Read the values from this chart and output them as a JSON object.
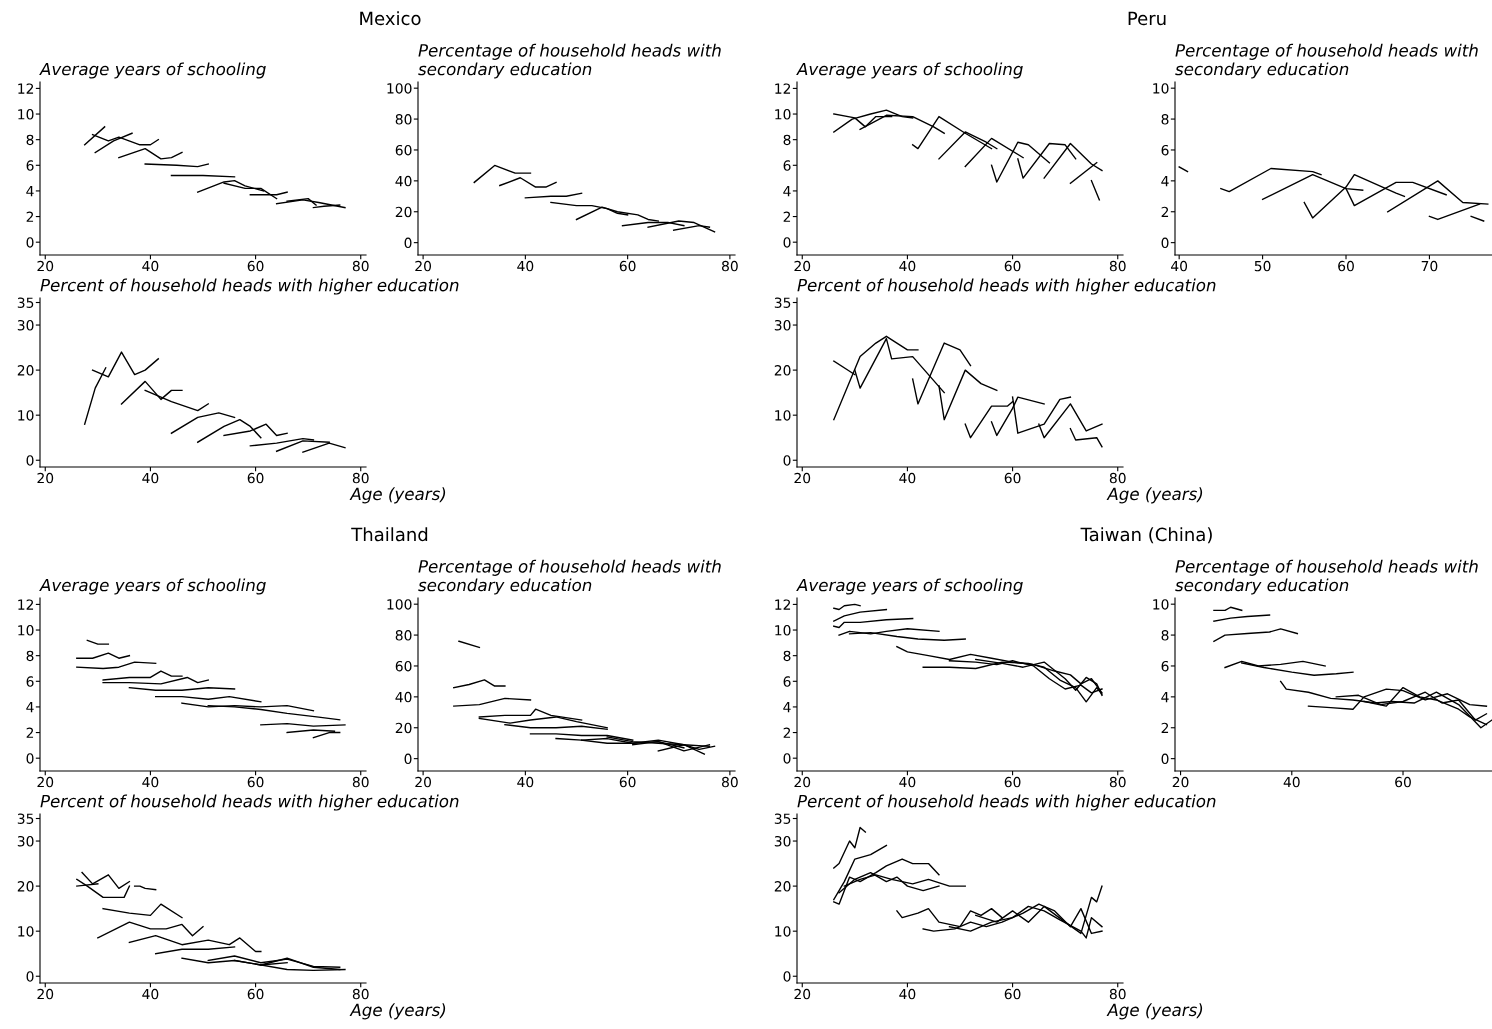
{
  "chart_data": [
    {
      "type": "line",
      "title": "Average years of schooling",
      "annotations": [
        "Mexico"
      ],
      "xlim": [
        19,
        81
      ],
      "xticks": [
        20,
        40,
        60,
        80
      ],
      "ylim": [
        -1,
        12.5
      ],
      "yticks": [
        0,
        2,
        4,
        6,
        8,
        10,
        12
      ],
      "series": [
        {
          "color": "#000000",
          "x": [
            27.5,
            31.3
          ],
          "values": [
            7.6,
            9.0
          ]
        },
        {
          "color": "#000000",
          "x": [
            29,
            32,
            34,
            38,
            40,
            41.5
          ],
          "values": [
            8.4,
            7.9,
            8.2,
            7.6,
            7.6,
            8.0
          ]
        },
        {
          "color": "#000000",
          "x": [
            29.5,
            33,
            36.5
          ],
          "values": [
            7.0,
            7.9,
            8.5
          ]
        },
        {
          "color": "#000000",
          "x": [
            34,
            39,
            42,
            44,
            46
          ],
          "values": [
            6.6,
            7.3,
            6.5,
            6.6,
            7.0
          ]
        },
        {
          "color": "#000000",
          "x": [
            39,
            45,
            49,
            51
          ],
          "values": [
            6.1,
            6.0,
            5.9,
            6.1
          ]
        },
        {
          "color": "#000000",
          "x": [
            44,
            50,
            56
          ],
          "values": [
            5.2,
            5.2,
            5.1
          ]
        },
        {
          "color": "#000000",
          "x": [
            49,
            54,
            56,
            58,
            61.5
          ],
          "values": [
            3.9,
            4.7,
            4.8,
            4.4,
            4.0
          ]
        },
        {
          "color": "#000000",
          "x": [
            54,
            58,
            61,
            64
          ],
          "values": [
            4.6,
            4.2,
            4.2,
            3.4
          ]
        },
        {
          "color": "#000000",
          "x": [
            59,
            64,
            66
          ],
          "values": [
            3.7,
            3.7,
            3.9
          ]
        },
        {
          "color": "#000000",
          "x": [
            64,
            69,
            72,
            77
          ],
          "values": [
            3.0,
            3.3,
            3.1,
            2.7
          ]
        },
        {
          "color": "#000000",
          "x": [
            66,
            70,
            71.5
          ],
          "values": [
            3.2,
            3.4,
            2.9
          ]
        },
        {
          "color": "#000000",
          "x": [
            71,
            73,
            76
          ],
          "values": [
            2.7,
            2.8,
            2.9
          ]
        }
      ]
    },
    {
      "type": "line",
      "title": "Percentage of household heads with\nsecondary education",
      "xlim": [
        19,
        81
      ],
      "xticks": [
        20,
        40,
        60,
        80
      ],
      "ylim": [
        -8,
        104
      ],
      "yticks": [
        0,
        20,
        40,
        60,
        80,
        100
      ],
      "series": [
        {
          "color": "#000000",
          "x": [
            30,
            34,
            38,
            41
          ],
          "values": [
            39,
            50,
            45,
            45
          ]
        },
        {
          "color": "#000000",
          "x": [
            35,
            39,
            42,
            44,
            46
          ],
          "values": [
            37,
            42,
            36,
            36,
            39
          ]
        },
        {
          "color": "#000000",
          "x": [
            40,
            45,
            48,
            51
          ],
          "values": [
            29,
            30,
            30,
            32
          ]
        },
        {
          "color": "#000000",
          "x": [
            45,
            50,
            53,
            56,
            58,
            60
          ],
          "values": [
            26,
            24,
            24,
            22,
            19,
            18
          ]
        },
        {
          "color": "#000000",
          "x": [
            50,
            55,
            58,
            62,
            64,
            66
          ],
          "values": [
            15,
            23,
            20,
            18,
            15,
            14
          ]
        },
        {
          "color": "#000000",
          "x": [
            59,
            64,
            68,
            71
          ],
          "values": [
            11,
            13,
            13,
            11
          ]
        },
        {
          "color": "#000000",
          "x": [
            64,
            70,
            73,
            77
          ],
          "values": [
            10,
            14,
            13,
            7
          ]
        },
        {
          "color": "#000000",
          "x": [
            69,
            74,
            76
          ],
          "values": [
            8,
            11,
            10
          ]
        }
      ]
    },
    {
      "type": "line",
      "title": "Percent of household heads with higher education",
      "xlabel": "Age (years)",
      "xlim": [
        19,
        81
      ],
      "xticks": [
        20,
        40,
        60,
        80
      ],
      "ylim": [
        -1.5,
        36
      ],
      "yticks": [
        0,
        10,
        20,
        30,
        35
      ],
      "series": [
        {
          "color": "#000000",
          "x": [
            27.5,
            29.5,
            31.5
          ],
          "values": [
            8,
            16,
            20.5
          ]
        },
        {
          "color": "#000000",
          "x": [
            29,
            32,
            34.5,
            37,
            39,
            41.5
          ],
          "values": [
            20,
            18.5,
            24,
            19,
            20,
            22.5
          ]
        },
        {
          "color": "#000000",
          "x": [
            34.5,
            39,
            42,
            44,
            46
          ],
          "values": [
            12.5,
            17.5,
            13.5,
            15.5,
            15.5
          ]
        },
        {
          "color": "#000000",
          "x": [
            39,
            44,
            49,
            51
          ],
          "values": [
            15.5,
            13,
            11,
            12.5
          ]
        },
        {
          "color": "#000000",
          "x": [
            44,
            49,
            53,
            56
          ],
          "values": [
            6,
            9.5,
            10.5,
            9.5
          ]
        },
        {
          "color": "#000000",
          "x": [
            49,
            54,
            57,
            59,
            61
          ],
          "values": [
            4,
            7.5,
            9,
            7.5,
            5
          ]
        },
        {
          "color": "#000000",
          "x": [
            54,
            59,
            62,
            64,
            66
          ],
          "values": [
            5.5,
            6.5,
            8,
            5.5,
            6
          ]
        },
        {
          "color": "#000000",
          "x": [
            59,
            64,
            69,
            71
          ],
          "values": [
            3.2,
            3.8,
            4.8,
            4.5
          ]
        },
        {
          "color": "#000000",
          "x": [
            64,
            69,
            74
          ],
          "values": [
            2,
            4.3,
            4
          ]
        },
        {
          "color": "#000000",
          "x": [
            69,
            74,
            77
          ],
          "values": [
            1.8,
            3.8,
            2.8
          ]
        }
      ]
    },
    {
      "type": "line",
      "title": "Average years of schooling",
      "annotations": [
        "Peru"
      ],
      "xlim": [
        19,
        81
      ],
      "xticks": [
        20,
        40,
        60,
        80
      ],
      "ylim": [
        -1,
        12.5
      ],
      "yticks": [
        0,
        2,
        4,
        6,
        8,
        10,
        12
      ],
      "series": [
        {
          "color": "#000000",
          "x": [
            26,
            30,
            32,
            34,
            37
          ],
          "values": [
            10.0,
            9.7,
            9.0,
            9.8,
            9.8
          ]
        },
        {
          "color": "#000000",
          "x": [
            26,
            29.5,
            33,
            36,
            39,
            41
          ],
          "values": [
            8.6,
            9.6,
            10.0,
            10.3,
            9.8,
            9.7
          ]
        },
        {
          "color": "#000000",
          "x": [
            31,
            36,
            41,
            45,
            47
          ],
          "values": [
            8.8,
            9.9,
            9.8,
            9.0,
            8.5
          ]
        },
        {
          "color": "#000000",
          "x": [
            41,
            42,
            46,
            51,
            56
          ],
          "values": [
            7.6,
            7.3,
            9.8,
            8.5,
            7.3
          ]
        },
        {
          "color": "#000000",
          "x": [
            46,
            51,
            55,
            57
          ],
          "values": [
            6.5,
            8.6,
            7.8,
            7.3
          ]
        },
        {
          "color": "#000000",
          "x": [
            51,
            56,
            62
          ],
          "values": [
            5.9,
            8.1,
            6.6
          ]
        },
        {
          "color": "#000000",
          "x": [
            56,
            57,
            61,
            63,
            67
          ],
          "values": [
            6.0,
            4.7,
            7.8,
            7.6,
            6.2
          ]
        },
        {
          "color": "#000000",
          "x": [
            61,
            62,
            67,
            70,
            72
          ],
          "values": [
            6.5,
            5.0,
            7.7,
            7.6,
            6.5
          ]
        },
        {
          "color": "#000000",
          "x": [
            66,
            71,
            75,
            77
          ],
          "values": [
            5.0,
            7.7,
            6.1,
            5.6
          ]
        },
        {
          "color": "#000000",
          "x": [
            71,
            76
          ],
          "values": [
            4.6,
            6.2
          ]
        },
        {
          "color": "#000000",
          "x": [
            75,
            76.5
          ],
          "values": [
            4.8,
            3.3
          ]
        }
      ]
    },
    {
      "type": "line",
      "title": "Percentage of household heads with\nsecondary education",
      "xlim": [
        39.5,
        77.5
      ],
      "xticks": [
        40,
        50,
        60,
        70
      ],
      "ylim": [
        -0.8,
        10.4
      ],
      "yticks": [
        0,
        2,
        4,
        6,
        8,
        10
      ],
      "series": [
        {
          "color": "#000000",
          "x": [
            40,
            41
          ],
          "values": [
            4.9,
            4.6
          ]
        },
        {
          "color": "#000000",
          "x": [
            45,
            46,
            51,
            56,
            57
          ],
          "values": [
            3.5,
            3.3,
            4.8,
            4.6,
            4.4
          ]
        },
        {
          "color": "#000000",
          "x": [
            50,
            56,
            60,
            62
          ],
          "values": [
            2.8,
            4.4,
            3.5,
            3.4
          ]
        },
        {
          "color": "#000000",
          "x": [
            55,
            56,
            60,
            61,
            66,
            67
          ],
          "values": [
            2.6,
            1.6,
            3.6,
            4.4,
            3.2,
            3.0
          ]
        },
        {
          "color": "#000000",
          "x": [
            60,
            61,
            66,
            68,
            72
          ],
          "values": [
            3.5,
            2.4,
            3.9,
            3.9,
            3.1
          ]
        },
        {
          "color": "#000000",
          "x": [
            65,
            71,
            74,
            77
          ],
          "values": [
            2.0,
            4.0,
            2.6,
            2.5
          ]
        },
        {
          "color": "#000000",
          "x": [
            70,
            71,
            76
          ],
          "values": [
            1.7,
            1.5,
            2.5
          ]
        },
        {
          "color": "#000000",
          "x": [
            75,
            76.5
          ],
          "values": [
            1.7,
            1.4
          ]
        }
      ]
    },
    {
      "type": "line",
      "title": "Percent of household heads with higher education",
      "xlabel": "Age (years)",
      "xlim": [
        19,
        81
      ],
      "xticks": [
        20,
        40,
        60,
        80
      ],
      "ylim": [
        -1.5,
        36
      ],
      "yticks": [
        0,
        10,
        20,
        30,
        35
      ],
      "series": [
        {
          "color": "#000000",
          "x": [
            26,
            30
          ],
          "values": [
            22,
            19
          ]
        },
        {
          "color": "#000000",
          "x": [
            26,
            31,
            34,
            36,
            40,
            42
          ],
          "values": [
            9,
            23,
            26,
            27.5,
            24.5,
            24.5
          ]
        },
        {
          "color": "#000000",
          "x": [
            30,
            31,
            36,
            37,
            41,
            47
          ],
          "values": [
            20,
            16,
            27,
            22.5,
            23,
            15
          ]
        },
        {
          "color": "#000000",
          "x": [
            41,
            42,
            47,
            50,
            52
          ],
          "values": [
            18,
            12.5,
            26,
            24.5,
            21
          ]
        },
        {
          "color": "#000000",
          "x": [
            46,
            47,
            51,
            54,
            57
          ],
          "values": [
            16.5,
            9,
            20,
            17,
            15.5
          ]
        },
        {
          "color": "#000000",
          "x": [
            51,
            52,
            56,
            59,
            60
          ],
          "values": [
            8,
            5,
            12,
            12,
            13
          ]
        },
        {
          "color": "#000000",
          "x": [
            56,
            57,
            60,
            61,
            66
          ],
          "values": [
            8.5,
            5.5,
            11.5,
            14,
            12.5
          ]
        },
        {
          "color": "#000000",
          "x": [
            60,
            61,
            66,
            69,
            71
          ],
          "values": [
            14,
            6,
            8,
            13.5,
            14
          ]
        },
        {
          "color": "#000000",
          "x": [
            65,
            66,
            71,
            74,
            77
          ],
          "values": [
            8,
            5,
            12.5,
            6.5,
            8
          ]
        },
        {
          "color": "#000000",
          "x": [
            71,
            72,
            76,
            77
          ],
          "values": [
            7,
            4.5,
            5,
            3
          ]
        }
      ]
    },
    {
      "type": "line",
      "title": "Average years of schooling",
      "annotations": [
        "Thailand"
      ],
      "xlim": [
        19,
        81
      ],
      "xticks": [
        20,
        40,
        60,
        80
      ],
      "ylim": [
        -1,
        12.5
      ],
      "yticks": [
        0,
        2,
        4,
        6,
        8,
        10,
        12
      ],
      "series": [
        {
          "color": "#000000",
          "x": [
            28,
            30,
            32
          ],
          "values": [
            9.2,
            8.9,
            8.9
          ]
        },
        {
          "color": "#000000",
          "x": [
            26,
            29,
            32,
            34,
            36
          ],
          "values": [
            7.8,
            7.8,
            8.2,
            7.8,
            8.0
          ]
        },
        {
          "color": "#000000",
          "x": [
            26,
            31,
            34,
            37,
            41
          ],
          "values": [
            7.1,
            7.0,
            7.1,
            7.5,
            7.4
          ]
        },
        {
          "color": "#000000",
          "x": [
            31,
            36,
            40,
            42,
            44,
            46
          ],
          "values": [
            6.1,
            6.3,
            6.3,
            6.8,
            6.4,
            6.4
          ]
        },
        {
          "color": "#000000",
          "x": [
            31,
            36,
            42,
            47,
            49,
            51
          ],
          "values": [
            5.9,
            5.9,
            5.8,
            6.3,
            5.9,
            6.1
          ]
        },
        {
          "color": "#000000",
          "x": [
            36,
            41,
            46,
            51,
            56
          ],
          "values": [
            5.5,
            5.3,
            5.3,
            5.5,
            5.4
          ]
        },
        {
          "color": "#000000",
          "x": [
            41,
            46,
            51,
            55,
            61
          ],
          "values": [
            4.8,
            4.8,
            4.6,
            4.8,
            4.4
          ]
        },
        {
          "color": "#000000",
          "x": [
            46,
            51,
            56,
            61,
            66,
            71
          ],
          "values": [
            4.3,
            4.0,
            4.1,
            4.0,
            4.1,
            3.7
          ]
        },
        {
          "color": "#000000",
          "x": [
            51,
            56,
            61,
            66,
            72,
            76
          ],
          "values": [
            4.1,
            4.0,
            3.8,
            3.5,
            3.2,
            3.0
          ]
        },
        {
          "color": "#000000",
          "x": [
            61,
            66,
            71,
            77
          ],
          "values": [
            2.6,
            2.7,
            2.5,
            2.6
          ]
        },
        {
          "color": "#000000",
          "x": [
            66,
            71,
            75
          ],
          "values": [
            2.0,
            2.2,
            2.1
          ]
        },
        {
          "color": "#000000",
          "x": [
            71,
            74,
            76
          ],
          "values": [
            1.6,
            2.0,
            2.0
          ]
        }
      ]
    },
    {
      "type": "line",
      "title": "Percentage of household heads with\nsecondary education",
      "xlim": [
        19,
        81
      ],
      "xticks": [
        20,
        40,
        60,
        80
      ],
      "ylim": [
        -8,
        104
      ],
      "yticks": [
        0,
        20,
        40,
        60,
        80,
        100
      ],
      "series": [
        {
          "color": "#000000",
          "x": [
            27,
            31
          ],
          "values": [
            76,
            72
          ]
        },
        {
          "color": "#000000",
          "x": [
            26,
            29,
            32,
            34,
            36
          ],
          "values": [
            46,
            48,
            51,
            47,
            47
          ]
        },
        {
          "color": "#000000",
          "x": [
            26,
            31,
            36,
            41
          ],
          "values": [
            34,
            35,
            39,
            38
          ]
        },
        {
          "color": "#000000",
          "x": [
            31,
            36,
            41,
            42,
            45,
            51
          ],
          "values": [
            27,
            28,
            28,
            32,
            28,
            25
          ]
        },
        {
          "color": "#000000",
          "x": [
            31,
            37,
            41,
            46,
            50,
            56
          ],
          "values": [
            26,
            23,
            25,
            27,
            24,
            20
          ]
        },
        {
          "color": "#000000",
          "x": [
            36,
            41,
            46,
            51,
            56
          ],
          "values": [
            22,
            20,
            20,
            21,
            19
          ]
        },
        {
          "color": "#000000",
          "x": [
            41,
            46,
            51,
            56,
            61
          ],
          "values": [
            16,
            16,
            15,
            15,
            12
          ]
        },
        {
          "color": "#000000",
          "x": [
            46,
            51,
            56,
            61,
            66,
            71
          ],
          "values": [
            13,
            12,
            13,
            10,
            11,
            7
          ]
        },
        {
          "color": "#000000",
          "x": [
            51,
            56,
            61,
            66,
            71,
            76
          ],
          "values": [
            12,
            10,
            10,
            12,
            9,
            8
          ]
        },
        {
          "color": "#000000",
          "x": [
            56,
            61,
            66,
            71,
            75
          ],
          "values": [
            14,
            11,
            10,
            9,
            3
          ]
        },
        {
          "color": "#000000",
          "x": [
            61,
            66,
            71,
            76
          ],
          "values": [
            9,
            11,
            5,
            9
          ]
        },
        {
          "color": "#000000",
          "x": [
            66,
            71,
            74,
            77
          ],
          "values": [
            5,
            9,
            6,
            8
          ]
        }
      ]
    },
    {
      "type": "line",
      "title": "Percent of household heads with higher education",
      "xlabel": "Age (years)",
      "xlim": [
        19,
        81
      ],
      "xticks": [
        20,
        40,
        60,
        80
      ],
      "ylim": [
        -1.5,
        36
      ],
      "yticks": [
        0,
        10,
        20,
        30,
        35
      ],
      "series": [
        {
          "color": "#000000",
          "x": [
            26,
            28,
            31,
            35,
            36
          ],
          "values": [
            21.5,
            20,
            17.5,
            17.5,
            20
          ]
        },
        {
          "color": "#000000",
          "x": [
            27,
            29,
            32,
            34,
            36
          ],
          "values": [
            23,
            20.5,
            22.5,
            19.5,
            21
          ]
        },
        {
          "color": "#000000",
          "x": [
            26,
            30
          ],
          "values": [
            20,
            20.5
          ]
        },
        {
          "color": "#000000",
          "x": [
            37,
            38,
            39,
            41
          ],
          "values": [
            20,
            20,
            19.5,
            19.2
          ]
        },
        {
          "color": "#000000",
          "x": [
            31,
            36,
            40,
            42,
            46
          ],
          "values": [
            15,
            14,
            13.5,
            16,
            13
          ]
        },
        {
          "color": "#000000",
          "x": [
            30,
            36,
            40,
            43,
            46,
            48,
            50
          ],
          "values": [
            8.5,
            12,
            10.5,
            10.5,
            11.5,
            9,
            11
          ]
        },
        {
          "color": "#000000",
          "x": [
            36,
            41,
            46,
            51,
            55,
            57,
            60,
            61
          ],
          "values": [
            7.5,
            9,
            7,
            8,
            7,
            8.5,
            5.5,
            5.5
          ]
        },
        {
          "color": "#000000",
          "x": [
            41,
            46,
            51,
            56
          ],
          "values": [
            5,
            6,
            6,
            6.5
          ]
        },
        {
          "color": "#000000",
          "x": [
            46,
            51,
            56,
            61,
            66
          ],
          "values": [
            4,
            3,
            3.5,
            2.5,
            3
          ]
        },
        {
          "color": "#000000",
          "x": [
            51,
            56,
            61,
            66,
            71,
            76
          ],
          "values": [
            3.5,
            4.5,
            3,
            3.8,
            2.2,
            2
          ]
        },
        {
          "color": "#000000",
          "x": [
            56,
            61,
            66,
            71,
            76
          ],
          "values": [
            3.5,
            2.5,
            4,
            2,
            1.5
          ]
        },
        {
          "color": "#000000",
          "x": [
            61,
            66,
            71,
            77
          ],
          "values": [
            2.5,
            1.5,
            1.3,
            1.5
          ]
        }
      ]
    },
    {
      "type": "line",
      "title": "Average years of schooling",
      "annotations": [
        "Taiwan (China)"
      ],
      "xlim": [
        19,
        81
      ],
      "xticks": [
        20,
        40,
        60,
        80
      ],
      "ylim": [
        -1,
        12.5
      ],
      "yticks": [
        0,
        2,
        4,
        6,
        8,
        10,
        12
      ],
      "series": [
        {
          "color": "#000000",
          "x": [
            26,
            27,
            28,
            30,
            31
          ],
          "values": [
            11.7,
            11.6,
            11.9,
            12.0,
            11.9
          ]
        },
        {
          "color": "#000000",
          "x": [
            26,
            28,
            31,
            36
          ],
          "values": [
            10.7,
            11.1,
            11.4,
            11.6
          ]
        },
        {
          "color": "#000000",
          "x": [
            26,
            27,
            28,
            31,
            36,
            41
          ],
          "values": [
            10.3,
            10.2,
            10.6,
            10.6,
            10.8,
            10.9
          ]
        },
        {
          "color": "#000000",
          "x": [
            27,
            29,
            33,
            36,
            40,
            46
          ],
          "values": [
            9.6,
            9.9,
            9.7,
            9.9,
            10.1,
            9.9
          ]
        },
        {
          "color": "#000000",
          "x": [
            29,
            33,
            38,
            42,
            47,
            51
          ],
          "values": [
            9.7,
            9.8,
            9.5,
            9.3,
            9.2,
            9.3
          ]
        },
        {
          "color": "#000000",
          "x": [
            38,
            40,
            44,
            48,
            52,
            56,
            60,
            64,
            68,
            71,
            73,
            75,
            77
          ],
          "values": [
            8.7,
            8.3,
            8.0,
            7.7,
            8.1,
            7.8,
            7.5,
            7.3,
            6.8,
            6.5,
            5.8,
            6.2,
            5.1
          ]
        },
        {
          "color": "#000000",
          "x": [
            43,
            48,
            53,
            58,
            63,
            66,
            69,
            72,
            74,
            76,
            77
          ],
          "values": [
            7.1,
            7.1,
            7.0,
            7.5,
            7.4,
            7.1,
            6.1,
            5.5,
            4.4,
            5.5,
            5.0
          ]
        },
        {
          "color": "#000000",
          "x": [
            48,
            53,
            57,
            60,
            64,
            67,
            70,
            73,
            75,
            77
          ],
          "values": [
            7.6,
            7.5,
            7.3,
            7.6,
            7.2,
            6.2,
            5.4,
            5.7,
            5.1,
            5.4
          ]
        },
        {
          "color": "#000000",
          "x": [
            53,
            58,
            62,
            66,
            70,
            72,
            74,
            76,
            77
          ],
          "values": [
            7.7,
            7.4,
            7.1,
            7.5,
            6.2,
            5.3,
            6.3,
            5.8,
            4.9
          ]
        }
      ]
    },
    {
      "type": "line",
      "title": "Percentage of household heads with\nsecondary education",
      "xlim": [
        19,
        76
      ],
      "xticks": [
        20,
        40,
        60
      ],
      "ylim": [
        -0.8,
        10.4
      ],
      "yticks": [
        0,
        2,
        4,
        6,
        8,
        10
      ],
      "series": [
        {
          "color": "#000000",
          "x": [
            26,
            28,
            29,
            31
          ],
          "values": [
            9.6,
            9.6,
            9.8,
            9.6
          ]
        },
        {
          "color": "#000000",
          "x": [
            26,
            29,
            32,
            36
          ],
          "values": [
            8.9,
            9.1,
            9.2,
            9.3
          ]
        },
        {
          "color": "#000000",
          "x": [
            26,
            28,
            32,
            36,
            38,
            41
          ],
          "values": [
            7.6,
            8.0,
            8.1,
            8.2,
            8.4,
            8.1
          ]
        },
        {
          "color": "#000000",
          "x": [
            28,
            31,
            34,
            38,
            42,
            46
          ],
          "values": [
            5.9,
            6.3,
            6.0,
            6.1,
            6.3,
            6.0
          ]
        },
        {
          "color": "#000000",
          "x": [
            31,
            35,
            40,
            44,
            48,
            51
          ],
          "values": [
            6.2,
            5.9,
            5.6,
            5.4,
            5.5,
            5.6
          ]
        },
        {
          "color": "#000000",
          "x": [
            38,
            39,
            43,
            47,
            51,
            55,
            58,
            62,
            66,
            70,
            74,
            76
          ],
          "values": [
            5.0,
            4.5,
            4.3,
            3.9,
            3.8,
            3.6,
            3.7,
            3.6,
            4.3,
            3.5,
            2.0,
            2.5
          ]
        },
        {
          "color": "#000000",
          "x": [
            43,
            47,
            51,
            53,
            57,
            60,
            64,
            68,
            72,
            75
          ],
          "values": [
            3.4,
            3.3,
            3.2,
            4.0,
            4.5,
            4.4,
            3.8,
            4.2,
            3.5,
            3.4
          ]
        },
        {
          "color": "#000000",
          "x": [
            48,
            52,
            56,
            60,
            64,
            67,
            70,
            73,
            75
          ],
          "values": [
            4.0,
            4.1,
            3.5,
            3.7,
            4.3,
            3.6,
            3.8,
            2.5,
            2.9
          ]
        },
        {
          "color": "#000000",
          "x": [
            53,
            57,
            60,
            63,
            66,
            70,
            72,
            75
          ],
          "values": [
            3.7,
            3.4,
            4.6,
            4.0,
            3.8,
            3.2,
            2.7,
            2.2
          ]
        }
      ]
    },
    {
      "type": "line",
      "title": "Percent of household heads with higher education",
      "xlabel": "Age (years)",
      "xlim": [
        19,
        81
      ],
      "xticks": [
        20,
        40,
        60,
        80
      ],
      "ylim": [
        -1.5,
        36
      ],
      "yticks": [
        0,
        10,
        20,
        30,
        35
      ],
      "series": [
        {
          "color": "#000000",
          "x": [
            26,
            27,
            29,
            30,
            31,
            32
          ],
          "values": [
            24,
            25,
            30,
            28.5,
            33,
            32
          ]
        },
        {
          "color": "#000000",
          "x": [
            26,
            28,
            30,
            33,
            36
          ],
          "values": [
            17,
            21,
            26,
            27,
            29
          ]
        },
        {
          "color": "#000000",
          "x": [
            26,
            27,
            29,
            31,
            34,
            36,
            39,
            41,
            44,
            46
          ],
          "values": [
            16.5,
            16,
            22,
            21,
            23,
            24.5,
            26,
            25,
            25,
            22.5
          ]
        },
        {
          "color": "#000000",
          "x": [
            28,
            31,
            34,
            37,
            41,
            44,
            48,
            51
          ],
          "values": [
            20,
            21.5,
            22.5,
            21.5,
            20.5,
            21.5,
            20,
            20
          ]
        },
        {
          "color": "#000000",
          "x": [
            27,
            30,
            33,
            36,
            38,
            40,
            43,
            46
          ],
          "values": [
            18.5,
            21.5,
            23,
            21,
            22,
            20,
            19,
            20
          ]
        },
        {
          "color": "#000000",
          "x": [
            38,
            39,
            42,
            44,
            46,
            50,
            52,
            54,
            56,
            58
          ],
          "values": [
            14.5,
            13,
            14,
            15,
            12,
            11,
            14.5,
            13.5,
            15,
            13
          ]
        },
        {
          "color": "#000000",
          "x": [
            43,
            45,
            49,
            52,
            55,
            58,
            62,
            65,
            68,
            71,
            73,
            75,
            77
          ],
          "values": [
            10.5,
            10,
            10.5,
            12,
            11,
            12,
            14,
            16,
            14.5,
            11,
            15,
            9.5,
            10
          ]
        },
        {
          "color": "#000000",
          "x": [
            48,
            52,
            56,
            60,
            63,
            66,
            69,
            73,
            74,
            75,
            77
          ],
          "values": [
            11,
            10,
            12,
            13,
            15.5,
            14.5,
            12.5,
            10,
            8.5,
            13,
            11
          ]
        },
        {
          "color": "#000000",
          "x": [
            53,
            57,
            60,
            63,
            66,
            70,
            73,
            75,
            76,
            77
          ],
          "values": [
            13.5,
            12,
            14.5,
            12,
            15.5,
            12,
            9.5,
            17.5,
            16.5,
            20
          ]
        }
      ]
    }
  ]
}
